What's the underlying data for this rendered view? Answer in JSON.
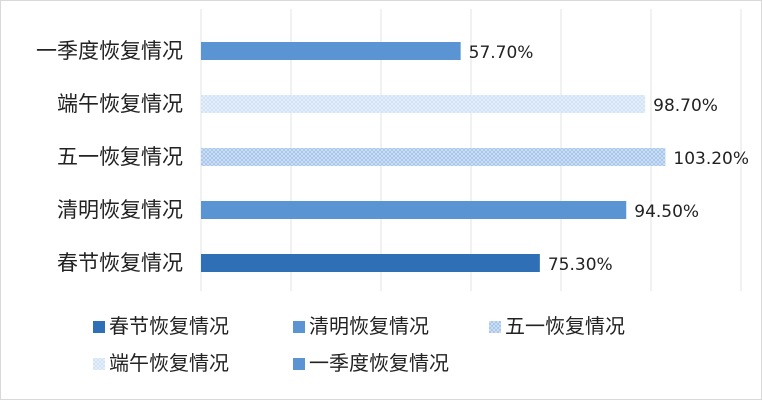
{
  "chart_data": {
    "type": "bar",
    "orientation": "horizontal",
    "categories": [
      "春节恢复情况",
      "清明恢复情况",
      "五一恢复情况",
      "端午恢复情况",
      "一季度恢复情况"
    ],
    "values": [
      75.3,
      94.5,
      103.2,
      98.7,
      57.7
    ],
    "value_labels": [
      "75.30%",
      "94.50%",
      "103.20%",
      "98.70%",
      "57.70%"
    ],
    "colors": [
      "#2e6fb5",
      "#5b94d2",
      "#9dc0e8",
      "#c7dcf1",
      "#5b94d2"
    ],
    "patterns": [
      "solid",
      "solid",
      "dotted",
      "dotted",
      "solid"
    ],
    "xlim": [
      0,
      104
    ],
    "grid": true,
    "legend": {
      "position": "bottom",
      "items": [
        "春节恢复情况",
        "清明恢复情况",
        "五一恢复情况",
        "端午恢复情况",
        "一季度恢复情况"
      ]
    },
    "title": "",
    "xlabel": "",
    "ylabel": ""
  }
}
